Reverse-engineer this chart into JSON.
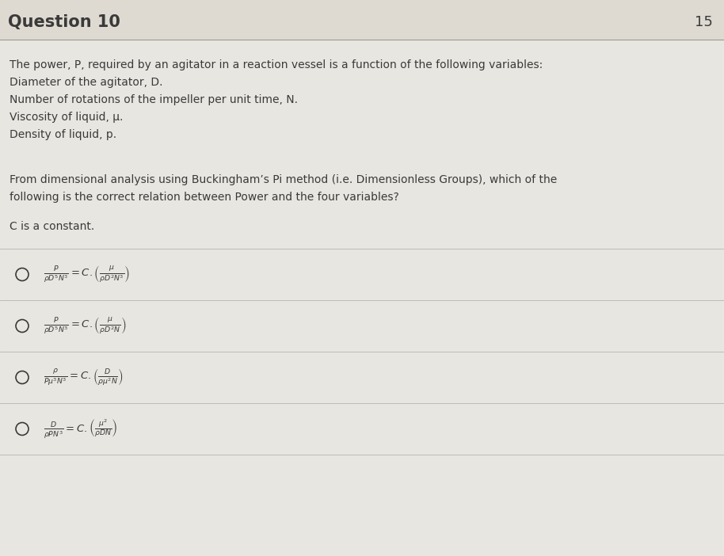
{
  "title": "Question 10",
  "title_number": "15",
  "bg_color": "#e8e6e0",
  "content_bg": "#e8e6e0",
  "text_color": "#3a3a3a",
  "intro_lines": [
    "The power, P, required by an agitator in a reaction vessel is a function of the following variables:",
    "Diameter of the agitator, D.",
    "Number of rotations of the impeller per unit time, N.",
    "Viscosity of liquid, μ.",
    "Density of liquid, p."
  ],
  "question_lines": [
    "From dimensional analysis using Buckingham’s Pi method (i.e. Dimensionless Groups), which of the",
    "following is the correct relation between Power and the four variables?"
  ],
  "constant_line": "C is a constant.",
  "options_math": [
    "$\\frac{P}{\\rho D^5 N^3} = C.\\left(\\frac{\\mu}{\\rho D^2 N^3}\\right)$",
    "$\\frac{P}{\\rho D^5 N^3} = C.\\left(\\frac{\\mu}{\\rho D^2 N}\\right)$",
    "$\\frac{\\rho}{P\\mu^3 N^3} = C.\\left(\\frac{D}{\\rho\\mu^2 N}\\right)$",
    "$\\frac{D}{\\rho P N^3} = C.\\left(\\frac{\\mu^2}{\\rho D N}\\right)$"
  ]
}
